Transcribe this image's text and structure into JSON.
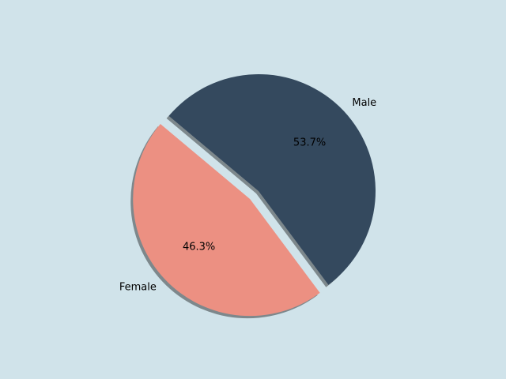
{
  "chart_data": {
    "type": "pie",
    "categories": [
      "Male",
      "Female"
    ],
    "values": [
      53.7,
      46.3
    ],
    "value_labels": [
      "53.7%",
      "46.3%"
    ],
    "colors": [
      "#34495e",
      "#ec9082"
    ],
    "explode": [
      0,
      0.1
    ],
    "startangle": 140,
    "counterclock": false,
    "shadow": true
  }
}
